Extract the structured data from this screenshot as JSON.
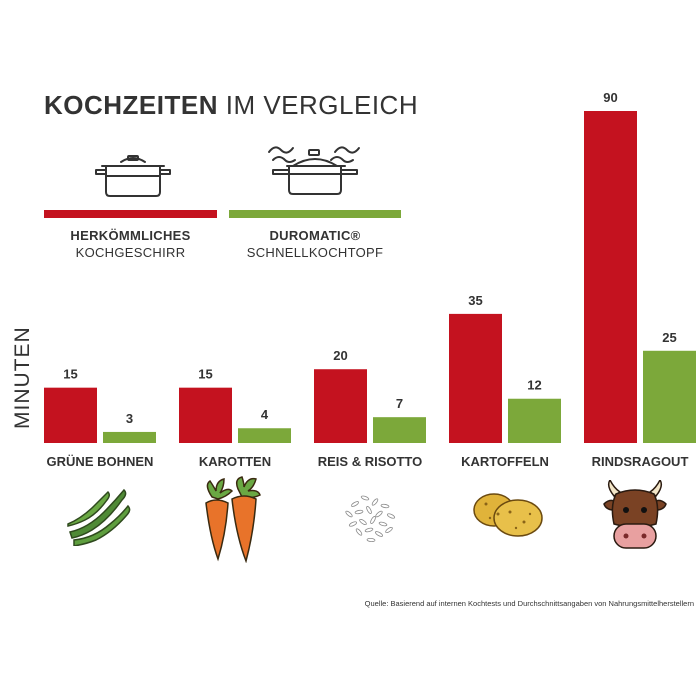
{
  "title": {
    "bold": "KOCHZEITEN",
    "light": "IM VERGLEICH"
  },
  "colors": {
    "conventional": "#c4121f",
    "duromatic": "#7ca83a",
    "text": "#333333"
  },
  "legend": [
    {
      "line1": "HERKÖMMLICHES",
      "line2": "KOCHGESCHIRR",
      "icon": "cooking-pot-icon"
    },
    {
      "line1": "DUROMATIC®",
      "line2": "SCHNELLKOCHTOPF",
      "icon": "pressure-cooker-icon"
    }
  ],
  "chart_data": {
    "type": "bar",
    "ylabel": "MINUTEN",
    "categories": [
      "GRÜNE BOHNEN",
      "KAROTTEN",
      "REIS & RISOTTO",
      "KARTOFFELN",
      "RINDSRAGOUT"
    ],
    "series": [
      {
        "name": "HERKÖMMLICHES KOCHGESCHIRR",
        "values": [
          15,
          15,
          20,
          35,
          90
        ]
      },
      {
        "name": "DUROMATIC® SCHNELLKOCHTOPF",
        "values": [
          3,
          4,
          7,
          12,
          25
        ]
      }
    ],
    "ylim": [
      0,
      90
    ],
    "grid": false,
    "legend_position": "top-left",
    "category_icons": [
      "green-beans-icon",
      "carrots-icon",
      "rice-icon",
      "potatoes-icon",
      "cow-icon"
    ]
  },
  "source": "Quelle: Basierend auf internen Kochtests und Durchschnittsangaben von Nahrungsmittelherstellern"
}
